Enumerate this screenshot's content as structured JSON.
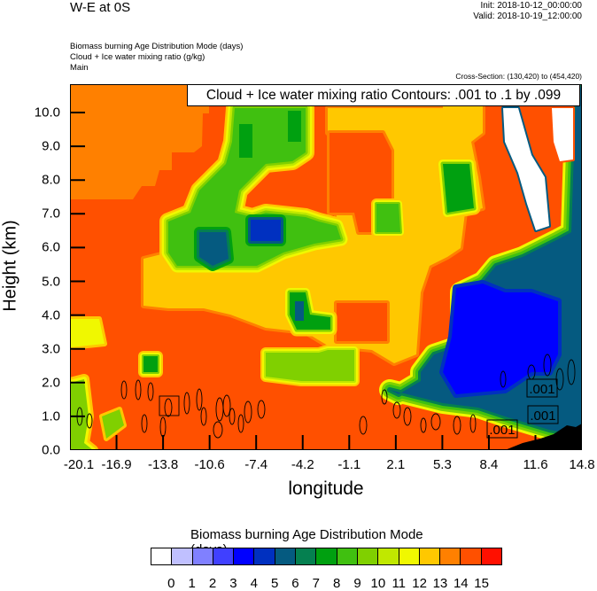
{
  "header": {
    "title": "W-E at 0S",
    "init": "Init: 2018-10-12_00:00:00",
    "valid": "Valid: 2018-10-19_12:00:00",
    "fields": [
      "Biomass burning Age Distribution Mode   (days)",
      "Cloud + Ice water mixing ratio   (g/kg)",
      "Main"
    ],
    "cross_section": "Cross-Section: (130,420) to (454,420)"
  },
  "chart_data": {
    "type": "heatmap",
    "title": "W-E at 0S",
    "xlabel": "longitude",
    "ylabel": "Height (km)",
    "xlim": [
      -20.1,
      14.8
    ],
    "ylim": [
      0,
      10.8
    ],
    "xticks": [
      "-20.1",
      "-16.9",
      "-13.8",
      "-10.6",
      "-7.4",
      "-4.2",
      "-1.1",
      "2.1",
      "5.3",
      "8.4",
      "11.6",
      "14.8"
    ],
    "yticks": [
      "0.0",
      "1.0",
      "2.0",
      "3.0",
      "4.0",
      "5.0",
      "6.0",
      "7.0",
      "8.0",
      "9.0",
      "10.0"
    ],
    "contour_legend": "Cloud + Ice water mixing ratio Contours: .001 to .1 by .099",
    "contour_labels": [
      ".001",
      ".001",
      ".001"
    ],
    "colorbar": {
      "title": "Biomass burning Age Distribution Mode  (days)",
      "labels": [
        "0",
        "1",
        "2",
        "3",
        "4",
        "5",
        "6",
        "7",
        "8",
        "9",
        "10",
        "11",
        "12",
        "13",
        "14",
        "15"
      ],
      "colors": [
        "#ffffff",
        "#c0c0ff",
        "#8080ff",
        "#4040ff",
        "#0000ff",
        "#0030c0",
        "#055a80",
        "#058050",
        "#00a010",
        "#40c010",
        "#80d000",
        "#c0e800",
        "#f0f800",
        "#ffc800",
        "#ff8000",
        "#ff5000",
        "#ff1000"
      ]
    }
  }
}
